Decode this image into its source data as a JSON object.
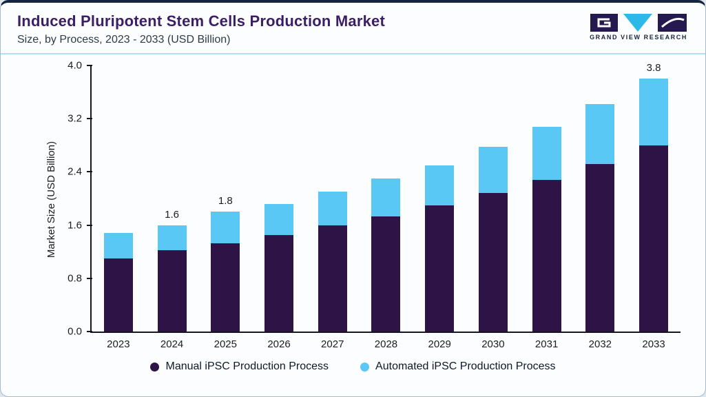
{
  "header": {
    "title": "Induced Pluripotent Stem Cells Production Market",
    "subtitle": "Size, by Process, 2023 - 2033 (USD Billion)",
    "brand": "GRAND VIEW RESEARCH"
  },
  "chart_data": {
    "type": "bar",
    "stacked": true,
    "title": "Induced Pluripotent Stem Cells Production Market Size, by Process, 2023 - 2033 (USD Billion)",
    "ylabel": "Market Size (USD Billion)",
    "ylim": [
      0,
      4.0
    ],
    "yticks": [
      "0.0",
      "0.8",
      "1.6",
      "2.4",
      "3.2",
      "4.0"
    ],
    "grid": false,
    "legend_position": "bottom",
    "categories": [
      "2023",
      "2024",
      "2025",
      "2026",
      "2027",
      "2028",
      "2029",
      "2030",
      "2031",
      "2032",
      "2033"
    ],
    "series": [
      {
        "name": "Manual iPSC Production Process",
        "color": "#2E1347",
        "values": [
          1.1,
          1.22,
          1.33,
          1.45,
          1.6,
          1.73,
          1.9,
          2.08,
          2.28,
          2.52,
          2.8
        ]
      },
      {
        "name": "Automated iPSC Production Process",
        "color": "#5AC8F5",
        "values": [
          0.38,
          0.38,
          0.47,
          0.47,
          0.5,
          0.57,
          0.6,
          0.7,
          0.8,
          0.9,
          1.0
        ]
      }
    ],
    "bar_total_labels": [
      "",
      "1.6",
      "1.8",
      "",
      "",
      "",
      "",
      "",
      "",
      "",
      "3.8"
    ]
  }
}
